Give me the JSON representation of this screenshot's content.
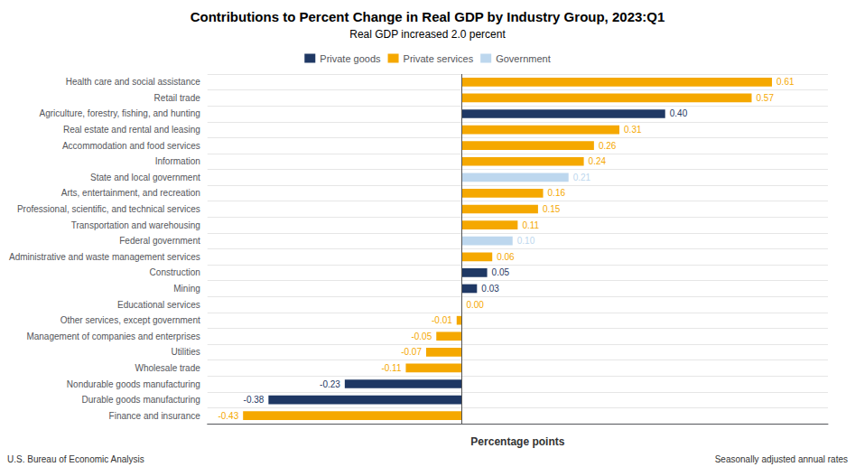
{
  "chart_data": {
    "type": "bar",
    "orientation": "horizontal",
    "stacked": true,
    "title": "Contributions to Percent Change in Real GDP by Industry Group, 2023:Q1",
    "subtitle": "Real GDP increased 2.0 percent",
    "xlabel": "Percentage points",
    "annotations": [
      "U.S. Bureau of Economic Analysis",
      "Seasonally adjusted annual rates"
    ],
    "categories": [
      "Health care and social assistance",
      "Retail trade",
      "Agriculture, forestry, fishing, and hunting",
      "Real estate and rental and leasing",
      "Accommodation and food services",
      "Information",
      "State and local government",
      "Arts, entertainment, and recreation",
      "Professional, scientific, and technical services",
      "Transportation and warehousing",
      "Federal government",
      "Administrative and waste management services",
      "Construction",
      "Mining",
      "Educational services",
      "Other services, except government",
      "Management of companies and enterprises",
      "Utilities",
      "Wholesale trade",
      "Nondurable goods manufacturing",
      "Durable goods manufacturing",
      "Finance and insurance"
    ],
    "series": [
      {
        "name": "Private goods",
        "color": "#1F3864",
        "values": [
          null,
          null,
          0.4,
          null,
          null,
          null,
          null,
          null,
          null,
          null,
          null,
          null,
          0.05,
          0.03,
          null,
          null,
          null,
          null,
          null,
          -0.23,
          -0.38,
          null
        ],
        "value_labels": [
          null,
          null,
          "0.40",
          null,
          null,
          null,
          null,
          null,
          null,
          null,
          null,
          null,
          "0.05",
          "0.03",
          null,
          null,
          null,
          null,
          null,
          "-0.23",
          "-0.38",
          null
        ]
      },
      {
        "name": "Private services",
        "color": "#F5A800",
        "values": [
          0.61,
          0.57,
          null,
          0.31,
          0.26,
          0.24,
          null,
          0.16,
          0.15,
          0.11,
          null,
          0.06,
          null,
          null,
          0.0,
          -0.01,
          -0.05,
          -0.07,
          -0.11,
          null,
          null,
          -0.43
        ],
        "value_labels": [
          "0.61",
          "0.57",
          null,
          "0.31",
          "0.26",
          "0.24",
          null,
          "0.16",
          "0.15",
          "0.11",
          null,
          "0.06",
          null,
          null,
          "0.00",
          "-0.01",
          "-0.05",
          "-0.07",
          "-0.11",
          null,
          null,
          "-0.43"
        ]
      },
      {
        "name": "Government",
        "color": "#BDD7EE",
        "values": [
          null,
          null,
          null,
          null,
          null,
          null,
          0.21,
          null,
          null,
          null,
          0.1,
          null,
          null,
          null,
          null,
          null,
          null,
          null,
          null,
          null,
          null,
          null
        ],
        "value_labels": [
          null,
          null,
          null,
          null,
          null,
          null,
          "0.21",
          null,
          null,
          null,
          "0.10",
          null,
          null,
          null,
          null,
          null,
          null,
          null,
          null,
          null,
          null,
          null
        ]
      }
    ],
    "xlim": [
      -0.5,
      0.72
    ],
    "tick_labels": "y",
    "grid": true,
    "data_labels": true,
    "legend": "top"
  }
}
